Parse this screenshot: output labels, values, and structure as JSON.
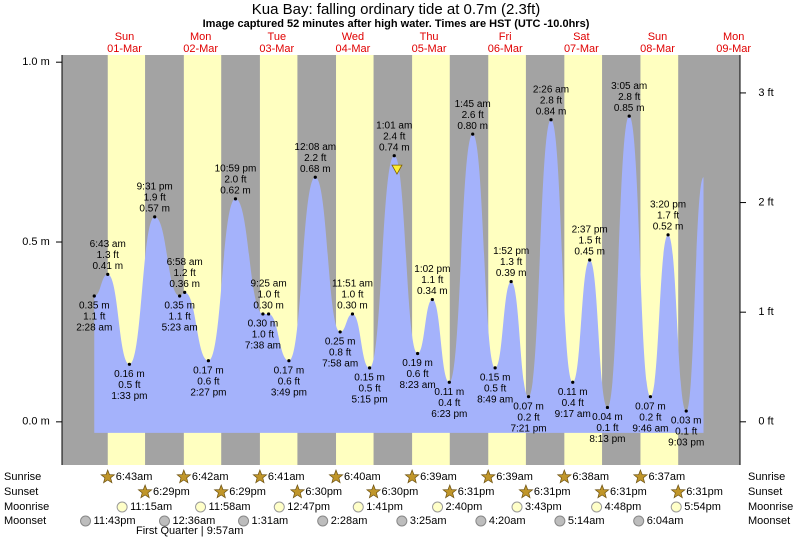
{
  "title": "Kua Bay: falling  ordinary tide at 0.7m (2.3ft)",
  "subtitle": "Image captured 52 minutes after high water. Times are HST (UTC -10.0hrs)",
  "chart_data": {
    "type": "area",
    "days": [
      {
        "dow": "Sun",
        "date": "01-Mar"
      },
      {
        "dow": "Mon",
        "date": "02-Mar"
      },
      {
        "dow": "Tue",
        "date": "03-Mar"
      },
      {
        "dow": "Wed",
        "date": "04-Mar"
      },
      {
        "dow": "Thu",
        "date": "05-Mar"
      },
      {
        "dow": "Fri",
        "date": "06-Mar"
      },
      {
        "dow": "Sat",
        "date": "07-Mar"
      },
      {
        "dow": "Sun",
        "date": "08-Mar"
      },
      {
        "dow": "Mon",
        "date": "09-Mar"
      }
    ],
    "x": [
      2.47,
      6.72,
      13.55,
      21.52,
      29.38,
      30.97,
      38.45,
      46.98,
      55.63,
      57.42,
      63.82,
      72.13,
      79.97,
      83.85,
      89.25,
      97.02,
      104.38,
      109.03,
      114.38,
      121.75,
      128.82,
      133.87,
      139.35,
      146.43,
      153.28,
      158.62,
      164.22,
      171.08,
      177.77,
      183.33,
      189.05,
      194.5
    ],
    "values": [
      0.35,
      0.41,
      0.16,
      0.57,
      0.35,
      0.36,
      0.17,
      0.62,
      0.3,
      0.3,
      0.17,
      0.68,
      0.25,
      0.3,
      0.15,
      0.74,
      0.19,
      0.34,
      0.11,
      0.8,
      0.15,
      0.39,
      0.07,
      0.84,
      0.11,
      0.45,
      0.04,
      0.85,
      0.07,
      0.52,
      0.03,
      0.68
    ],
    "value_labels": [
      "0.35 m",
      "0.41 m",
      "0.16 m",
      "0.57 m",
      "0.35 m",
      "0.36 m",
      "0.17 m",
      "0.62 m",
      "0.30 m",
      "0.30 m",
      "0.17 m",
      "0.68 m",
      "0.25 m",
      "0.30 m",
      "0.15 m",
      "0.74 m",
      "0.19 m",
      "0.34 m",
      "0.11 m",
      "0.80 m",
      "0.15 m",
      "0.39 m",
      "0.07 m",
      "0.84 m",
      "0.11 m",
      "0.45 m",
      "0.04 m",
      "0.85 m",
      "0.07 m",
      "0.52 m",
      "0.03 m",
      null
    ],
    "ft_labels": [
      "1.1 ft",
      "1.3 ft",
      "0.5 ft",
      "1.9 ft",
      "1.1 ft",
      "1.2 ft",
      "0.6 ft",
      "2.0 ft",
      "1.0 ft",
      "1.0 ft",
      "0.6 ft",
      "2.2 ft",
      "0.8 ft",
      "1.0 ft",
      "0.5 ft",
      "2.4 ft",
      "0.6 ft",
      "1.1 ft",
      "0.4 ft",
      "2.6 ft",
      "0.5 ft",
      "1.3 ft",
      "0.2 ft",
      "2.8 ft",
      "0.4 ft",
      "1.5 ft",
      "0.1 ft",
      "2.8 ft",
      "0.2 ft",
      "1.7 ft",
      "0.1 ft",
      null
    ],
    "time_labels": [
      "2:28 am",
      "6:43 am",
      "1:33 pm",
      "9:31 pm",
      "5:23 am",
      "6:58 am",
      "2:27 pm",
      "10:59 pm",
      "7:38 am",
      "9:25 am",
      "3:49 pm",
      "12:08 am",
      "7:58 am",
      "11:51 am",
      "5:15 pm",
      "1:01 am",
      "8:23 am",
      "1:02 pm",
      "6:23 pm",
      "1:45 am",
      "8:49 am",
      "1:52 pm",
      "7:21 pm",
      "2:26 am",
      "9:17 am",
      "2:37 pm",
      "8:13 pm",
      "3:05 am",
      "9:46 am",
      "3:20 pm",
      "9:03 pm",
      null
    ],
    "kinds": [
      "low",
      "high",
      "low",
      "high",
      "low",
      "high",
      "low",
      "high",
      "low",
      "high",
      "low",
      "high",
      "low",
      "high",
      "low",
      "high",
      "low",
      "high",
      "low",
      "high",
      "low",
      "high",
      "low",
      "high",
      "low",
      "high",
      "low",
      "high",
      "low",
      "high",
      "low",
      null
    ],
    "color": "#a4b2fb",
    "night_color": "#a3a3a3",
    "day_color": "#ffffc0",
    "xlim": [
      -7.7,
      206
    ],
    "ylim": [
      -0.12,
      1.02
    ],
    "yticks": [
      {
        "value": 0,
        "label": "0.0 m"
      },
      {
        "value": 0.5,
        "label": "0.5 m"
      },
      {
        "value": 1,
        "label": "1.0 m"
      }
    ],
    "y2lim": [
      -0.394,
      3.346
    ],
    "y2ticks": [
      {
        "value": 0,
        "label": "0 ft"
      },
      {
        "value": 1,
        "label": "1 ft"
      },
      {
        "value": 2,
        "label": "2 ft"
      },
      {
        "value": 3,
        "label": "3 ft"
      }
    ],
    "now": {
      "x": 97.88,
      "value": 0.7
    }
  },
  "almanac": {
    "rows": [
      {
        "name": "Sunrise",
        "icon": "sun",
        "events": [
          {
            "x": 6.72,
            "label": "6:43am"
          },
          {
            "x": 30.7,
            "label": "6:42am"
          },
          {
            "x": 54.68,
            "label": "6:41am"
          },
          {
            "x": 78.67,
            "label": "6:40am"
          },
          {
            "x": 102.65,
            "label": "6:39am"
          },
          {
            "x": 126.65,
            "label": "6:39am"
          },
          {
            "x": 150.63,
            "label": "6:38am"
          },
          {
            "x": 174.62,
            "label": "6:37am"
          }
        ]
      },
      {
        "name": "Sunset",
        "icon": "sun",
        "events": [
          {
            "x": 18.48,
            "label": "6:29pm"
          },
          {
            "x": 42.48,
            "label": "6:29pm"
          },
          {
            "x": 66.5,
            "label": "6:30pm"
          },
          {
            "x": 90.5,
            "label": "6:30pm"
          },
          {
            "x": 114.52,
            "label": "6:31pm"
          },
          {
            "x": 138.52,
            "label": "6:31pm"
          },
          {
            "x": 162.52,
            "label": "6:31pm"
          },
          {
            "x": 186.52,
            "label": "6:31pm"
          }
        ]
      },
      {
        "name": "Moonrise",
        "icon": "moonrise",
        "events": [
          {
            "x": 11.25,
            "label": "11:15am"
          },
          {
            "x": 35.97,
            "label": "11:58am"
          },
          {
            "x": 60.78,
            "label": "12:47pm"
          },
          {
            "x": 85.68,
            "label": "1:41pm"
          },
          {
            "x": 110.67,
            "label": "2:40pm"
          },
          {
            "x": 135.72,
            "label": "3:43pm"
          },
          {
            "x": 160.8,
            "label": "4:48pm"
          },
          {
            "x": 185.9,
            "label": "5:54pm"
          }
        ]
      },
      {
        "name": "Moonset",
        "icon": "moonset",
        "events": [
          {
            "x": -0.28,
            "label": "11:43pm"
          },
          {
            "x": 24.6,
            "label": "12:36am"
          },
          {
            "x": 49.52,
            "label": "1:31am"
          },
          {
            "x": 74.47,
            "label": "2:28am"
          },
          {
            "x": 99.42,
            "label": "3:25am"
          },
          {
            "x": 124.33,
            "label": "4:20am"
          },
          {
            "x": 149.23,
            "label": "5:14am"
          },
          {
            "x": 174.07,
            "label": "6:04am"
          }
        ]
      }
    ],
    "moon_phase": "First Quarter | 9:57am"
  }
}
